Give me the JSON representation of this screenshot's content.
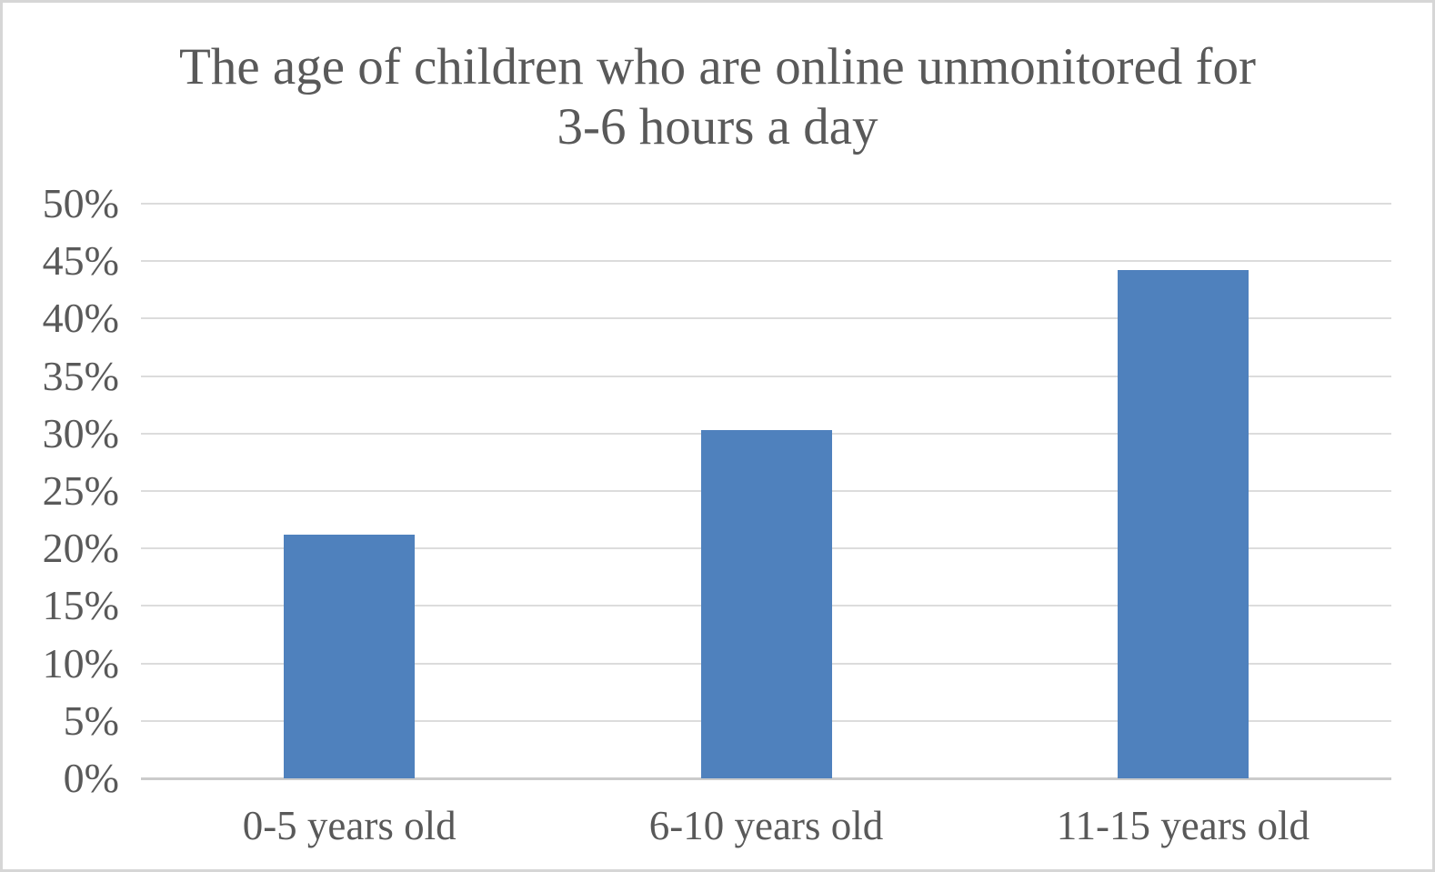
{
  "frame": {
    "background_color": "#FFFFFF",
    "border_color": "#D6D6D6"
  },
  "chart_data": {
    "type": "bar",
    "title": "The age of children who are online unmonitored for 3-6 hours a day",
    "title_lines": [
      "The age of children who are online unmonitored for",
      "3-6 hours a day"
    ],
    "categories": [
      "0-5 years old",
      "6-10 years old",
      "11-15 years old"
    ],
    "values": [
      21.2,
      30.3,
      44.2
    ],
    "unit": "%",
    "xlabel": "",
    "ylabel": "",
    "ylim": [
      0,
      50
    ],
    "ytick_step": 5,
    "ytick_labels": [
      "0%",
      "5%",
      "10%",
      "15%",
      "20%",
      "25%",
      "30%",
      "35%",
      "40%",
      "45%",
      "50%"
    ],
    "grid": true,
    "legend_position": "none",
    "bar_color": "#4F81BD",
    "gridline_color": "#DCDCDC",
    "axis_line_color": "#CBCBCB",
    "text_color": "#595959"
  }
}
